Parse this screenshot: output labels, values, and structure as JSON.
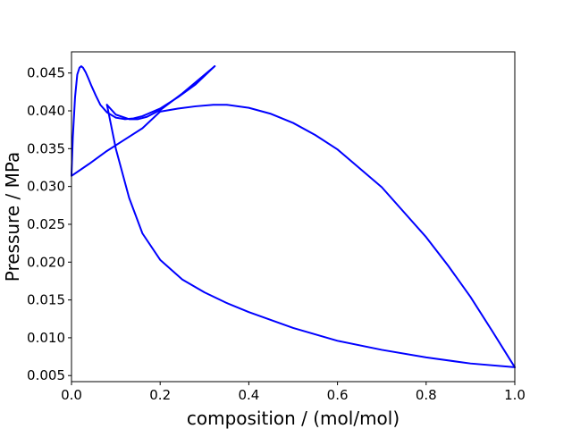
{
  "chart_data": {
    "type": "line",
    "title": "",
    "xlabel": "composition / (mol/mol)",
    "ylabel": "Pressure / MPa",
    "xlim": [
      0.0,
      1.0
    ],
    "ylim": [
      0.0042,
      0.0478
    ],
    "xticks": [
      0.0,
      0.2,
      0.4,
      0.6,
      0.8,
      1.0
    ],
    "xtick_labels": [
      "0.0",
      "0.2",
      "0.4",
      "0.6",
      "0.8",
      "1.0"
    ],
    "yticks": [
      0.005,
      0.01,
      0.015,
      0.02,
      0.025,
      0.03,
      0.035,
      0.04,
      0.045
    ],
    "ytick_labels": [
      "0.005",
      "0.010",
      "0.015",
      "0.020",
      "0.025",
      "0.030",
      "0.035",
      "0.040",
      "0.045"
    ],
    "grid": false,
    "legend": "none",
    "colors": {
      "series": "#0000ff"
    },
    "series": [
      {
        "name": "",
        "x": [
          0.0,
          0.003,
          0.008,
          0.013,
          0.018,
          0.022,
          0.026,
          0.032,
          0.038,
          0.045,
          0.055,
          0.065,
          0.08,
          0.1,
          0.12,
          0.14,
          0.16,
          0.2,
          0.24,
          0.28,
          0.323
        ],
        "y": [
          0.0315,
          0.0365,
          0.0418,
          0.0448,
          0.0457,
          0.0459,
          0.0457,
          0.0451,
          0.0443,
          0.0433,
          0.042,
          0.0408,
          0.0398,
          0.0391,
          0.0389,
          0.039,
          0.0393,
          0.0403,
          0.0418,
          0.0435,
          0.0459
        ]
      },
      {
        "name": "",
        "x": [
          0.323,
          0.25,
          0.2,
          0.17,
          0.15,
          0.13,
          0.1,
          0.08
        ],
        "y": [
          0.0459,
          0.0423,
          0.0401,
          0.0392,
          0.0389,
          0.0389,
          0.0395,
          0.0408
        ]
      },
      {
        "name": "",
        "x": [
          0.08,
          0.1,
          0.13,
          0.16,
          0.2,
          0.25,
          0.3,
          0.35,
          0.4,
          0.5,
          0.6,
          0.7,
          0.8,
          0.9,
          1.0
        ],
        "y": [
          0.0408,
          0.035,
          0.0285,
          0.0238,
          0.0203,
          0.0177,
          0.016,
          0.0146,
          0.0134,
          0.0113,
          0.0096,
          0.0084,
          0.0074,
          0.0066,
          0.0061
        ]
      },
      {
        "name": "",
        "x": [
          1.0,
          0.95,
          0.9,
          0.85,
          0.8,
          0.7,
          0.6,
          0.55,
          0.5,
          0.45,
          0.4,
          0.35,
          0.32,
          0.28,
          0.24,
          0.2,
          0.16,
          0.12,
          0.08,
          0.04,
          0.0
        ],
        "y": [
          0.0061,
          0.0108,
          0.0154,
          0.0195,
          0.0233,
          0.0299,
          0.0349,
          0.0368,
          0.0384,
          0.0396,
          0.0404,
          0.0408,
          0.0408,
          0.0406,
          0.0403,
          0.0399,
          0.0377,
          0.0362,
          0.0347,
          0.033,
          0.0314
        ]
      }
    ]
  }
}
